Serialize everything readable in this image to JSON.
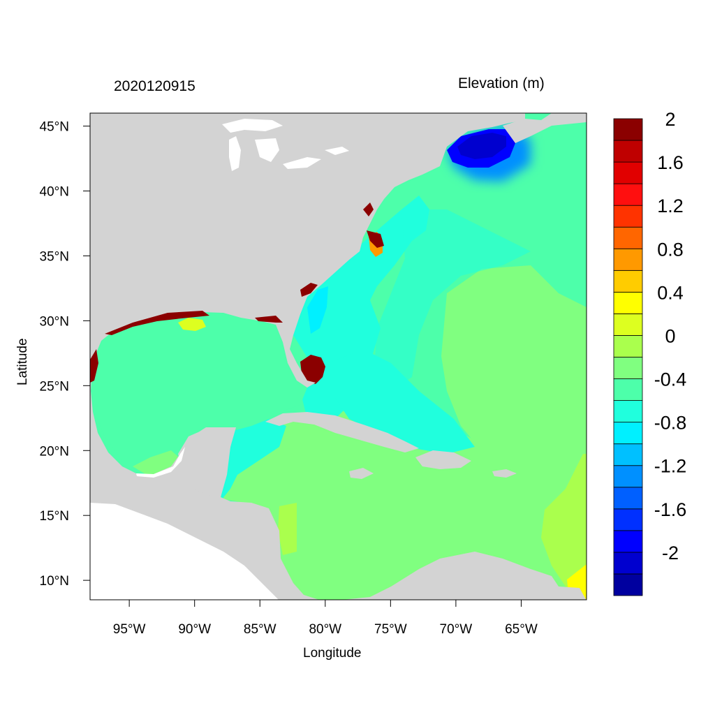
{
  "title_left": "2020120915",
  "title_right": "Elevation (m)",
  "x_label": "Longitude",
  "y_label": "Latitude",
  "map": {
    "lon_range": [
      -98,
      -60
    ],
    "lat_range": [
      8.5,
      46
    ],
    "x_ticks": [
      {
        "value": -95,
        "label": "95°W"
      },
      {
        "value": -90,
        "label": "90°W"
      },
      {
        "value": -85,
        "label": "85°W"
      },
      {
        "value": -80,
        "label": "80°W"
      },
      {
        "value": -75,
        "label": "75°W"
      },
      {
        "value": -70,
        "label": "70°W"
      },
      {
        "value": -65,
        "label": "65°W"
      }
    ],
    "y_ticks": [
      {
        "value": 45,
        "label": "45°N"
      },
      {
        "value": 40,
        "label": "40°N"
      },
      {
        "value": 35,
        "label": "35°N"
      },
      {
        "value": 30,
        "label": "30°N"
      },
      {
        "value": 25,
        "label": "25°N"
      },
      {
        "value": 20,
        "label": "20°N"
      },
      {
        "value": 15,
        "label": "15°N"
      },
      {
        "value": 10,
        "label": "10°N"
      }
    ],
    "land_color": "#d3d3d3",
    "ocean_base_color": "#4dffaa"
  },
  "colorbar": {
    "colors": [
      "#00009f",
      "#0000cf",
      "#0000ff",
      "#0030ff",
      "#0060ff",
      "#0090ff",
      "#00c0ff",
      "#00f0ff",
      "#20ffdd",
      "#4dffaa",
      "#80ff80",
      "#aaff4d",
      "#ddff20",
      "#ffff00",
      "#ffcc00",
      "#ff9900",
      "#ff6600",
      "#ff3300",
      "#ff0f0f",
      "#e10000",
      "#bf0000",
      "#8b0000"
    ],
    "labels": [
      {
        "after_index": 1,
        "text": "-2"
      },
      {
        "after_index": 3,
        "text": "-1.6"
      },
      {
        "after_index": 5,
        "text": "-1.2"
      },
      {
        "after_index": 7,
        "text": "-0.8"
      },
      {
        "after_index": 9,
        "text": "-0.4"
      },
      {
        "after_index": 11,
        "text": "0"
      },
      {
        "after_index": 13,
        "text": "0.4"
      },
      {
        "after_index": 15,
        "text": "0.8"
      },
      {
        "after_index": 17,
        "text": "1.2"
      },
      {
        "after_index": 19,
        "text": "1.6"
      },
      {
        "after_index": 21,
        "text": "2"
      }
    ]
  }
}
